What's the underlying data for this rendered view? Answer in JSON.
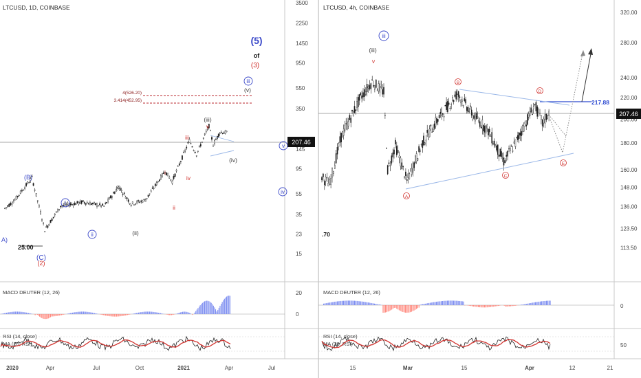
{
  "colors": {
    "candle": "#1a1a1a",
    "wave_blue": "#3b49c9",
    "wave_red": "#d0312d",
    "wave_gray": "#3a3a3a",
    "trend_line": "#9bb8e8",
    "macd_pos": "#7b8cf0",
    "macd_neg": "#ff8b80",
    "rsi_line": "#222222",
    "rsi_ma": "#d0312d",
    "target_line": "#2e4bd1",
    "divider": "#b0b0b0"
  },
  "chart_data": [
    {
      "type": "candlestick",
      "title": "LTCUSD, 1D, COINBASE",
      "y_scale": "log",
      "ylim": [
        10,
        3500
      ],
      "y_ticks": [
        "3500",
        "2250",
        "1450",
        "950",
        "550",
        "350",
        "207.46",
        "145",
        "95",
        "55",
        "35",
        "23",
        "15"
      ],
      "x_ticks": [
        "2020",
        "Apr",
        "Jul",
        "Oct",
        "2021",
        "Apr",
        "Jul"
      ],
      "last_price": "207.46",
      "price_path": [
        {
          "x": "2019-12",
          "y": 40
        },
        {
          "x": "2020-01-10",
          "y": 48
        },
        {
          "x": "2020-02-15",
          "y": 78
        },
        {
          "x": "2020-03-13",
          "y": 25
        },
        {
          "x": "2020-04-15",
          "y": 42
        },
        {
          "x": "2020-06-01",
          "y": 46
        },
        {
          "x": "2020-07-15",
          "y": 42
        },
        {
          "x": "2020-08-15",
          "y": 64
        },
        {
          "x": "2020-09-10",
          "y": 44
        },
        {
          "x": "2020-10-10",
          "y": 48
        },
        {
          "x": "2020-11-20",
          "y": 90
        },
        {
          "x": "2020-12-05",
          "y": 72
        },
        {
          "x": "2021-01-10",
          "y": 175
        },
        {
          "x": "2021-01-25",
          "y": 130
        },
        {
          "x": "2021-02-20",
          "y": 240
        },
        {
          "x": "2021-03-01",
          "y": 160
        },
        {
          "x": "2021-03-15",
          "y": 210
        },
        {
          "x": "2021-04-01",
          "y": 207.46
        }
      ],
      "levels": [
        {
          "label": "4(526.20)",
          "value": 526.2
        },
        {
          "label": "3.414(452.95)",
          "value": 452.95
        }
      ],
      "wave_labels": [
        {
          "text": "(5)",
          "color": "blue"
        },
        {
          "text": "of",
          "color": "gray"
        },
        {
          "text": "(3)",
          "color": "red"
        },
        {
          "text": "iii",
          "color": "blue"
        },
        {
          "text": "(v)",
          "color": "gray"
        },
        {
          "text": "(iii)",
          "color": "gray"
        },
        {
          "text": "v",
          "color": "red"
        },
        {
          "text": "iii",
          "color": "red"
        },
        {
          "text": "(iv)",
          "color": "gray"
        },
        {
          "text": "v",
          "color": "blue"
        },
        {
          "text": "iv",
          "color": "blue"
        },
        {
          "text": "i",
          "color": "red"
        },
        {
          "text": "iv",
          "color": "red"
        },
        {
          "text": "ii",
          "color": "red"
        },
        {
          "text": "(i)",
          "color": "gray"
        },
        {
          "text": "(ii)",
          "color": "gray"
        },
        {
          "text": "i",
          "color": "blue"
        },
        {
          "text": "ii",
          "color": "blue"
        },
        {
          "text": "(B)",
          "color": "blue"
        },
        {
          "text": "A)",
          "color": "blue"
        },
        {
          "text": "(C)",
          "color": "blue"
        },
        {
          "text": "(2)",
          "color": "red"
        },
        {
          "text": "25.00",
          "color": "black"
        }
      ],
      "indicators": [
        {
          "name": "MACD DEUTER (12, 26)",
          "ticks": [
            "20",
            "0"
          ]
        },
        {
          "name": "RSI (14, close)",
          "ma": "MA (20, RSI)"
        }
      ]
    },
    {
      "type": "candlestick",
      "title": "LTCUSD, 4h, COINBASE",
      "y_scale": "log",
      "ylim": [
        105,
        330
      ],
      "y_ticks": [
        "320.00",
        "280.00",
        "240.00",
        "220.00",
        "207.46",
        "200.00",
        "180.00",
        "160.00",
        "148.00",
        "136.00",
        "123.50",
        "113.50"
      ],
      "x_ticks": [
        "15",
        "Mar",
        "15",
        "Apr",
        "12",
        "21"
      ],
      "last_price": "207.46",
      "target_price": "217.88",
      "left_edge_label": ".70",
      "price_path": [
        {
          "x": "2021-02-06",
          "y": 155
        },
        {
          "x": "2021-02-08",
          "y": 150
        },
        {
          "x": "2021-02-11",
          "y": 185
        },
        {
          "x": "2021-02-16",
          "y": 220
        },
        {
          "x": "2021-02-19",
          "y": 236
        },
        {
          "x": "2021-02-22",
          "y": 225
        },
        {
          "x": "2021-02-23",
          "y": 160
        },
        {
          "x": "2021-02-25",
          "y": 178
        },
        {
          "x": "2021-02-28",
          "y": 152
        },
        {
          "x": "2021-03-04",
          "y": 180
        },
        {
          "x": "2021-03-08",
          "y": 200
        },
        {
          "x": "2021-03-13",
          "y": 224
        },
        {
          "x": "2021-03-17",
          "y": 204
        },
        {
          "x": "2021-03-21",
          "y": 190
        },
        {
          "x": "2021-03-25",
          "y": 166
        },
        {
          "x": "2021-03-28",
          "y": 180
        },
        {
          "x": "2021-04-02",
          "y": 213
        },
        {
          "x": "2021-04-04",
          "y": 196
        },
        {
          "x": "2021-04-06",
          "y": 207.46
        }
      ],
      "wave_labels": [
        {
          "text": "iii",
          "color": "blue"
        },
        {
          "text": "(iii)",
          "color": "gray"
        },
        {
          "text": "v",
          "color": "red"
        },
        {
          "text": "A",
          "color": "red"
        },
        {
          "text": "B",
          "color": "red"
        },
        {
          "text": "C",
          "color": "red"
        },
        {
          "text": "D",
          "color": "red"
        },
        {
          "text": "E",
          "color": "red"
        }
      ],
      "indicators": [
        {
          "name": "MACD DEUTER (12, 26)",
          "ticks": [
            "0"
          ]
        },
        {
          "name": "RSI (14, close)",
          "ma": "MA (20, RSI)",
          "ticks": [
            "50"
          ]
        }
      ]
    }
  ]
}
